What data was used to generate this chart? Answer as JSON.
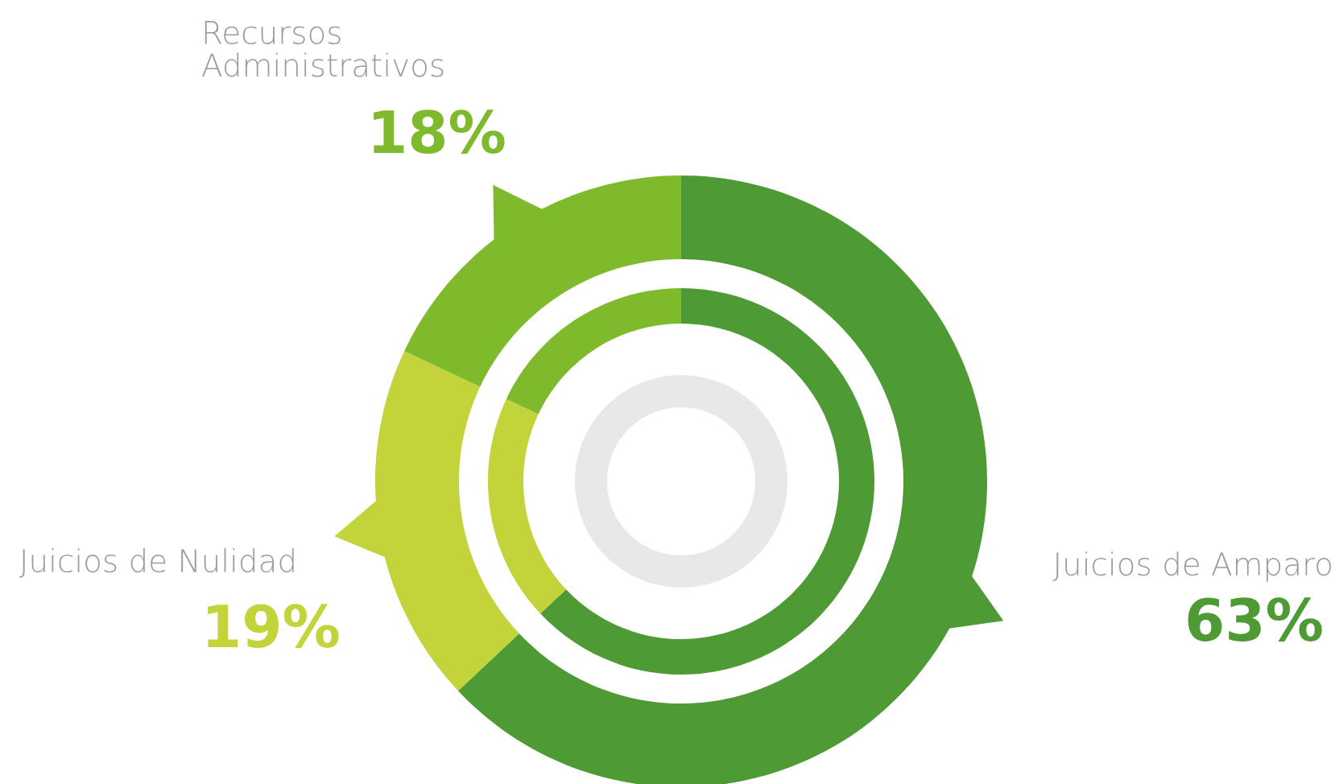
{
  "chart_data": {
    "type": "donut",
    "categories": [
      "Juicios de Amparo",
      "Juicios de Nulidad",
      "Recursos Administrativos"
    ],
    "series": [
      {
        "values": [
          63,
          19,
          18
        ],
        "colors": [
          "#4e9a34",
          "#c2d43a",
          "#7fba2c"
        ]
      },
      {
        "values": [
          63,
          19,
          18
        ],
        "colors": [
          "#4e9a34",
          "#c2d43a",
          "#7fba2c"
        ]
      }
    ],
    "value_labels": [
      "63%",
      "19%",
      "18%"
    ]
  }
}
